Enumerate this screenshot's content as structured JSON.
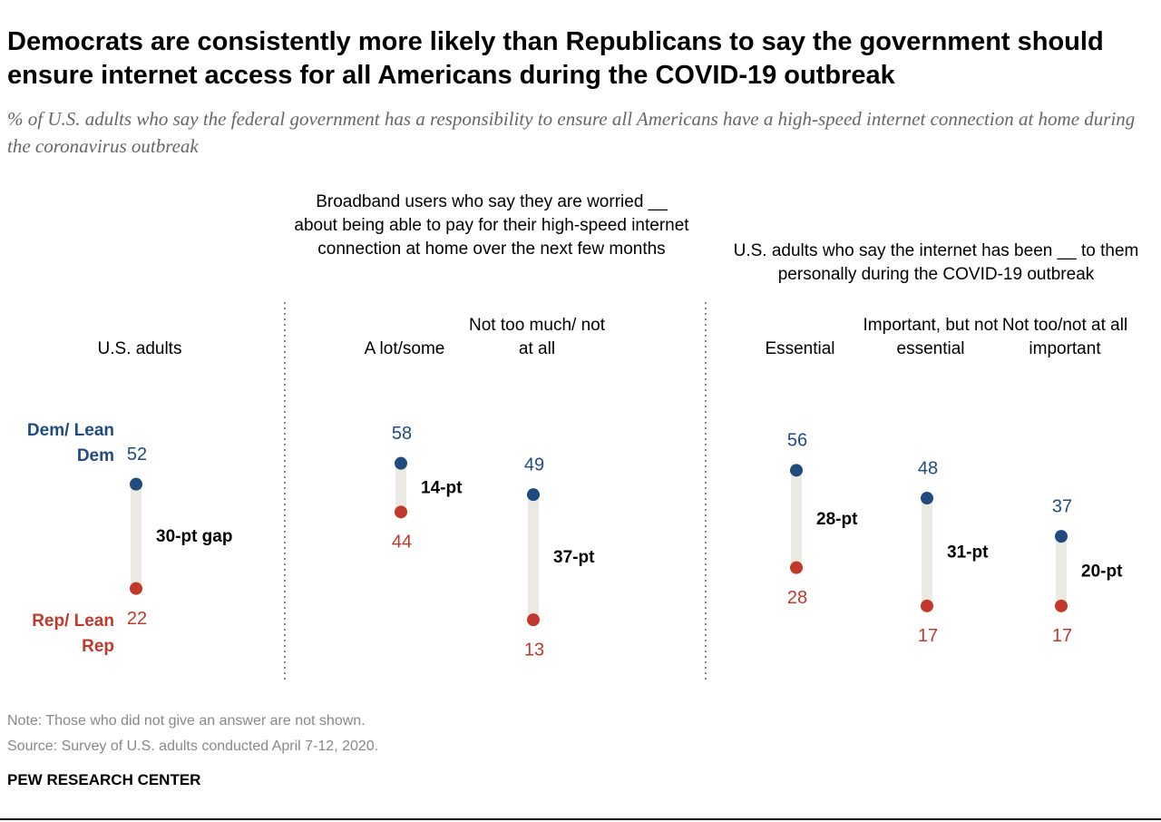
{
  "title": "Democrats are consistently more likely than Republicans to say the government should ensure internet access for all Americans during the COVID-19 outbreak",
  "subtitle": "% of U.S. adults who say the federal government has a responsibility to ensure all Americans have a high-speed internet connection at home during the coronavirus outbreak",
  "chart_data": {
    "type": "dumbbell",
    "panel_titles": [
      "Broadband users who say they are worried __ about being able to pay for their high-speed internet connection at home over the next few months",
      "U.S. adults who say the internet has been __ to them personally during the COVID-19 outbreak"
    ],
    "categories": [
      "U.S. adults",
      "A lot/some",
      "Not too much/ not at all",
      "Essential",
      "Important, but not essential",
      "Not too/not at all important"
    ],
    "series": [
      {
        "name": "Dem/ Lean Dem",
        "color": "#1f4b7f",
        "values": [
          52,
          58,
          49,
          56,
          48,
          37
        ]
      },
      {
        "name": "Rep/ Lean Rep",
        "color": "#c0392b",
        "values": [
          22,
          44,
          13,
          28,
          17,
          17
        ]
      }
    ],
    "gap_labels": [
      "30-pt gap",
      "14-pt",
      "37-pt",
      "28-pt",
      "31-pt",
      "20-pt"
    ]
  },
  "note": "Note: Those who did not give an answer are not shown.",
  "source": "Source: Survey of U.S. adults conducted April 7-12, 2020.",
  "footer": "PEW RESEARCH CENTER"
}
